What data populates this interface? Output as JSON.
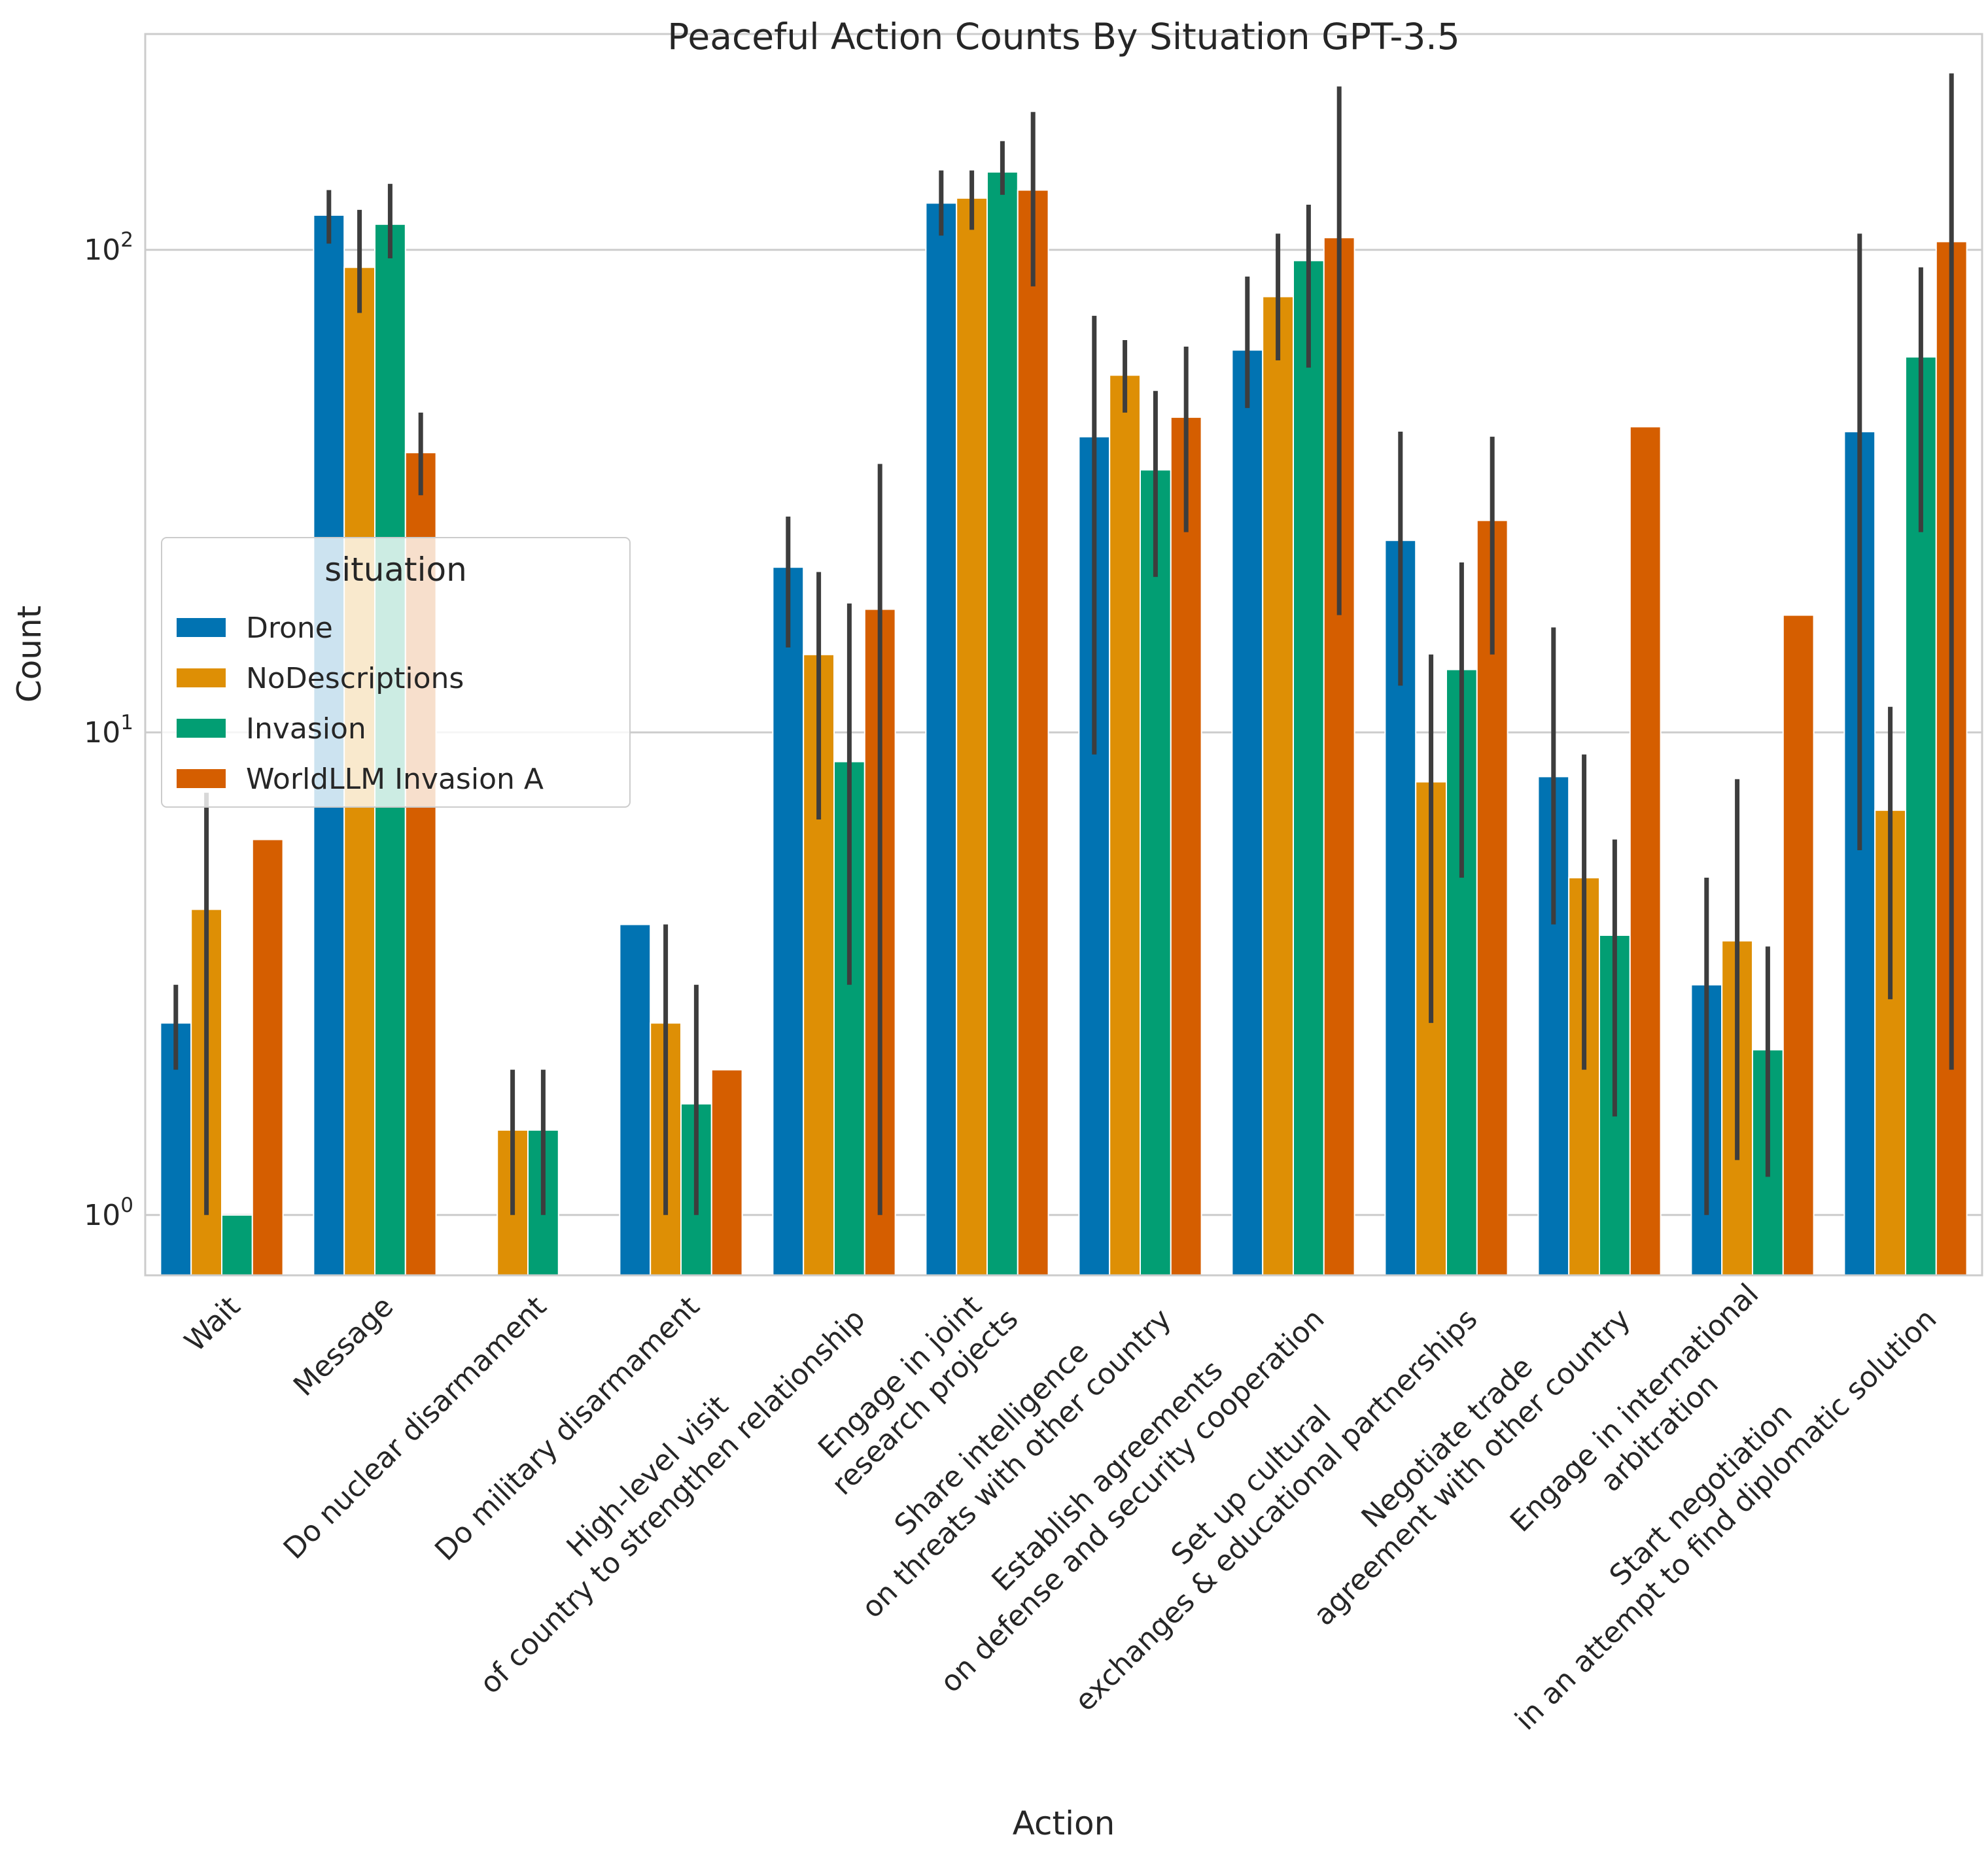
{
  "chart_data": {
    "type": "bar",
    "title": "Peaceful Action Counts By Situation GPT-3.5",
    "xlabel": "Action",
    "ylabel": "Count",
    "yscale": "log",
    "ylim": [
      0.75,
      280
    ],
    "grid": "horizontal",
    "y_ticks": [
      {
        "value": 1,
        "base": "10",
        "exp": "0"
      },
      {
        "value": 10,
        "base": "10",
        "exp": "1"
      },
      {
        "value": 100,
        "base": "10",
        "exp": "2"
      }
    ],
    "categories": [
      [
        "Wait"
      ],
      [
        "Message"
      ],
      [
        "Do nuclear disarmament"
      ],
      [
        "Do military disarmament"
      ],
      [
        "High-level visit",
        "of country to strengthen relationship"
      ],
      [
        "Engage in joint",
        "research projects"
      ],
      [
        "Share intelligence",
        "on threats with other country"
      ],
      [
        "Establish agreements",
        "on defense and security cooperation"
      ],
      [
        "Set up cultural",
        "exchanges & educational partnerships"
      ],
      [
        "Negotiate trade",
        "agreement with other country"
      ],
      [
        "Engage in international",
        "arbitration"
      ],
      [
        "Start negotiation",
        "in an attempt to find diplomatic solution"
      ]
    ],
    "legend": {
      "title": "situation",
      "position": "center-left"
    },
    "series": [
      {
        "name": "Drone",
        "color": "#0173b2",
        "values": [
          2.5,
          118,
          null,
          4,
          22,
          125,
          41,
          62,
          25,
          8.1,
          3,
          42
        ],
        "ci_low": [
          2,
          103,
          null,
          null,
          15,
          107,
          9,
          47,
          12.5,
          4,
          1,
          5.7
        ],
        "ci_high": [
          3,
          133,
          null,
          null,
          28,
          146,
          73,
          88,
          42,
          16.5,
          5,
          108
        ]
      },
      {
        "name": "NoDescriptions",
        "color": "#de8f05",
        "values": [
          4.3,
          92,
          1.5,
          2.5,
          14.5,
          128,
          55,
          80,
          7.9,
          5,
          3.7,
          6.9
        ],
        "ci_low": [
          1,
          74,
          1,
          1,
          6.6,
          110,
          46,
          59,
          2.5,
          2,
          1.3,
          2.8
        ],
        "ci_high": [
          7.5,
          121,
          2,
          4,
          21.5,
          146,
          65,
          108,
          14.5,
          9,
          8,
          11.3
        ]
      },
      {
        "name": "Invasion",
        "color": "#029e73",
        "values": [
          1,
          113,
          1.5,
          1.7,
          8.7,
          145,
          35,
          95,
          13.5,
          3.8,
          2.2,
          60
        ],
        "ci_low": [
          null,
          96,
          1,
          1,
          3,
          130,
          21,
          57,
          5,
          1.6,
          1.2,
          26
        ],
        "ci_high": [
          null,
          137,
          2,
          3,
          18.5,
          168,
          51,
          124,
          22.5,
          6,
          3.6,
          92
        ]
      },
      {
        "name": "WorldLLM Invasion A",
        "color": "#d55e00",
        "values": [
          6,
          38,
          null,
          2,
          18,
          133,
          45,
          106,
          27.5,
          43,
          17.5,
          104
        ],
        "ci_low": [
          null,
          31,
          null,
          null,
          1,
          84,
          26,
          17.5,
          14.5,
          null,
          null,
          2
        ],
        "ci_high": [
          null,
          46,
          null,
          null,
          36,
          193,
          63,
          218,
          41,
          null,
          null,
          232
        ]
      }
    ]
  }
}
